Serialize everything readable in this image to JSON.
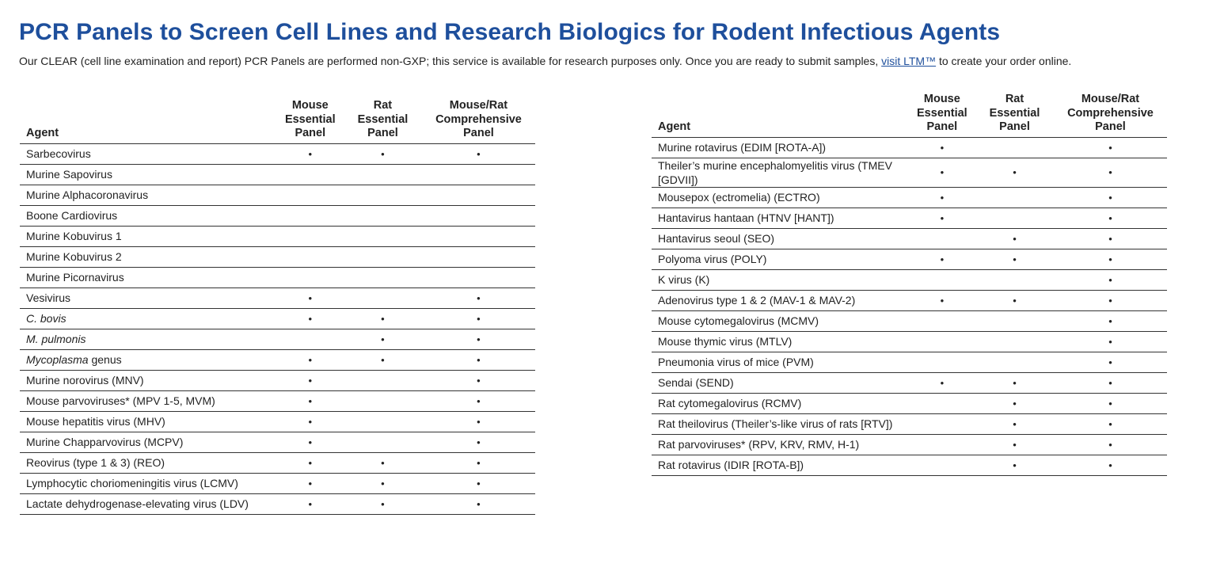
{
  "header": {
    "title": "PCR Panels to Screen Cell Lines and Research Biologics for Rodent Infectious Agents",
    "intro_before_link": "Our CLEAR (cell line examination and report) PCR Panels are performed non-GXP; this service is available for research purposes only. Once you are ready to submit samples, ",
    "intro_link": "visit LTM™",
    "intro_after_link": " to create your order online."
  },
  "columns": {
    "agent": "Agent",
    "mouse_essential": [
      "Mouse",
      "Essential",
      "Panel"
    ],
    "rat_essential": [
      "Rat",
      "Essential",
      "Panel"
    ],
    "comprehensive": [
      "Mouse/Rat",
      "Comprehensive",
      "Panel"
    ]
  },
  "mark_symbol": "•",
  "left_table": [
    {
      "agent": "Sarbecovirus",
      "mouse": true,
      "rat": true,
      "comp": true
    },
    {
      "agent": "Murine Sapovirus",
      "mouse": false,
      "rat": false,
      "comp": false
    },
    {
      "agent": "Murine Alphacoronavirus",
      "mouse": false,
      "rat": false,
      "comp": false
    },
    {
      "agent": "Boone Cardiovirus",
      "mouse": false,
      "rat": false,
      "comp": false
    },
    {
      "agent": "Murine Kobuvirus 1",
      "mouse": false,
      "rat": false,
      "comp": false
    },
    {
      "agent": "Murine Kobuvirus 2",
      "mouse": false,
      "rat": false,
      "comp": false
    },
    {
      "agent": "Murine Picornavirus",
      "mouse": false,
      "rat": false,
      "comp": false
    },
    {
      "agent": "Vesivirus",
      "mouse": true,
      "rat": false,
      "comp": true
    },
    {
      "agent_italic": "C. bovis",
      "agent": "",
      "mouse": true,
      "rat": true,
      "comp": true
    },
    {
      "agent_italic": "M. pulmonis",
      "agent": "",
      "mouse": false,
      "rat": true,
      "comp": true
    },
    {
      "agent_italic": "Mycoplasma",
      "agent": " genus",
      "mouse": true,
      "rat": true,
      "comp": true
    },
    {
      "agent": "Murine norovirus (MNV)",
      "mouse": true,
      "rat": false,
      "comp": true
    },
    {
      "agent": "Mouse parvoviruses* (MPV 1-5, MVM)",
      "mouse": true,
      "rat": false,
      "comp": true
    },
    {
      "agent": "Mouse hepatitis virus (MHV)",
      "mouse": true,
      "rat": false,
      "comp": true
    },
    {
      "agent": "Murine Chapparvovirus (MCPV)",
      "mouse": true,
      "rat": false,
      "comp": true
    },
    {
      "agent": "Reovirus (type 1 & 3) (REO)",
      "mouse": true,
      "rat": true,
      "comp": true
    },
    {
      "agent": "Lymphocytic choriomeningitis virus (LCMV)",
      "mouse": true,
      "rat": true,
      "comp": true
    },
    {
      "agent": "Lactate dehydrogenase-elevating virus (LDV)",
      "mouse": true,
      "rat": true,
      "comp": true
    }
  ],
  "right_table": [
    {
      "agent": "Murine rotavirus (EDIM [ROTA-A])",
      "mouse": true,
      "rat": false,
      "comp": true
    },
    {
      "agent": "Theiler’s murine encephalomyelitis virus (TMEV [GDVII])",
      "mouse": true,
      "rat": true,
      "comp": true,
      "tall": true
    },
    {
      "agent": "Mousepox (ectromelia) (ECTRO)",
      "mouse": true,
      "rat": false,
      "comp": true
    },
    {
      "agent": "Hantavirus hantaan (HTNV [HANT])",
      "mouse": true,
      "rat": false,
      "comp": true
    },
    {
      "agent": "Hantavirus seoul (SEO)",
      "mouse": false,
      "rat": true,
      "comp": true
    },
    {
      "agent": "Polyoma virus (POLY)",
      "mouse": true,
      "rat": true,
      "comp": true
    },
    {
      "agent": "K virus (K)",
      "mouse": false,
      "rat": false,
      "comp": true
    },
    {
      "agent": "Adenovirus type 1 & 2 (MAV-1 & MAV-2)",
      "mouse": true,
      "rat": true,
      "comp": true
    },
    {
      "agent": "Mouse cytomegalovirus (MCMV)",
      "mouse": false,
      "rat": false,
      "comp": true
    },
    {
      "agent": "Mouse thymic virus (MTLV)",
      "mouse": false,
      "rat": false,
      "comp": true
    },
    {
      "agent": "Pneumonia virus of mice (PVM)",
      "mouse": false,
      "rat": false,
      "comp": true
    },
    {
      "agent": "Sendai (SEND)",
      "mouse": true,
      "rat": true,
      "comp": true
    },
    {
      "agent": "Rat cytomegalovirus (RCMV)",
      "mouse": false,
      "rat": true,
      "comp": true
    },
    {
      "agent": "Rat theilovirus (Theiler’s-like virus of rats [RTV])",
      "mouse": false,
      "rat": true,
      "comp": true
    },
    {
      "agent": "Rat parvoviruses* (RPV, KRV, RMV, H-1)",
      "mouse": false,
      "rat": true,
      "comp": true
    },
    {
      "agent": "Rat rotavirus (IDIR [ROTA-B])",
      "mouse": false,
      "rat": true,
      "comp": true
    }
  ]
}
